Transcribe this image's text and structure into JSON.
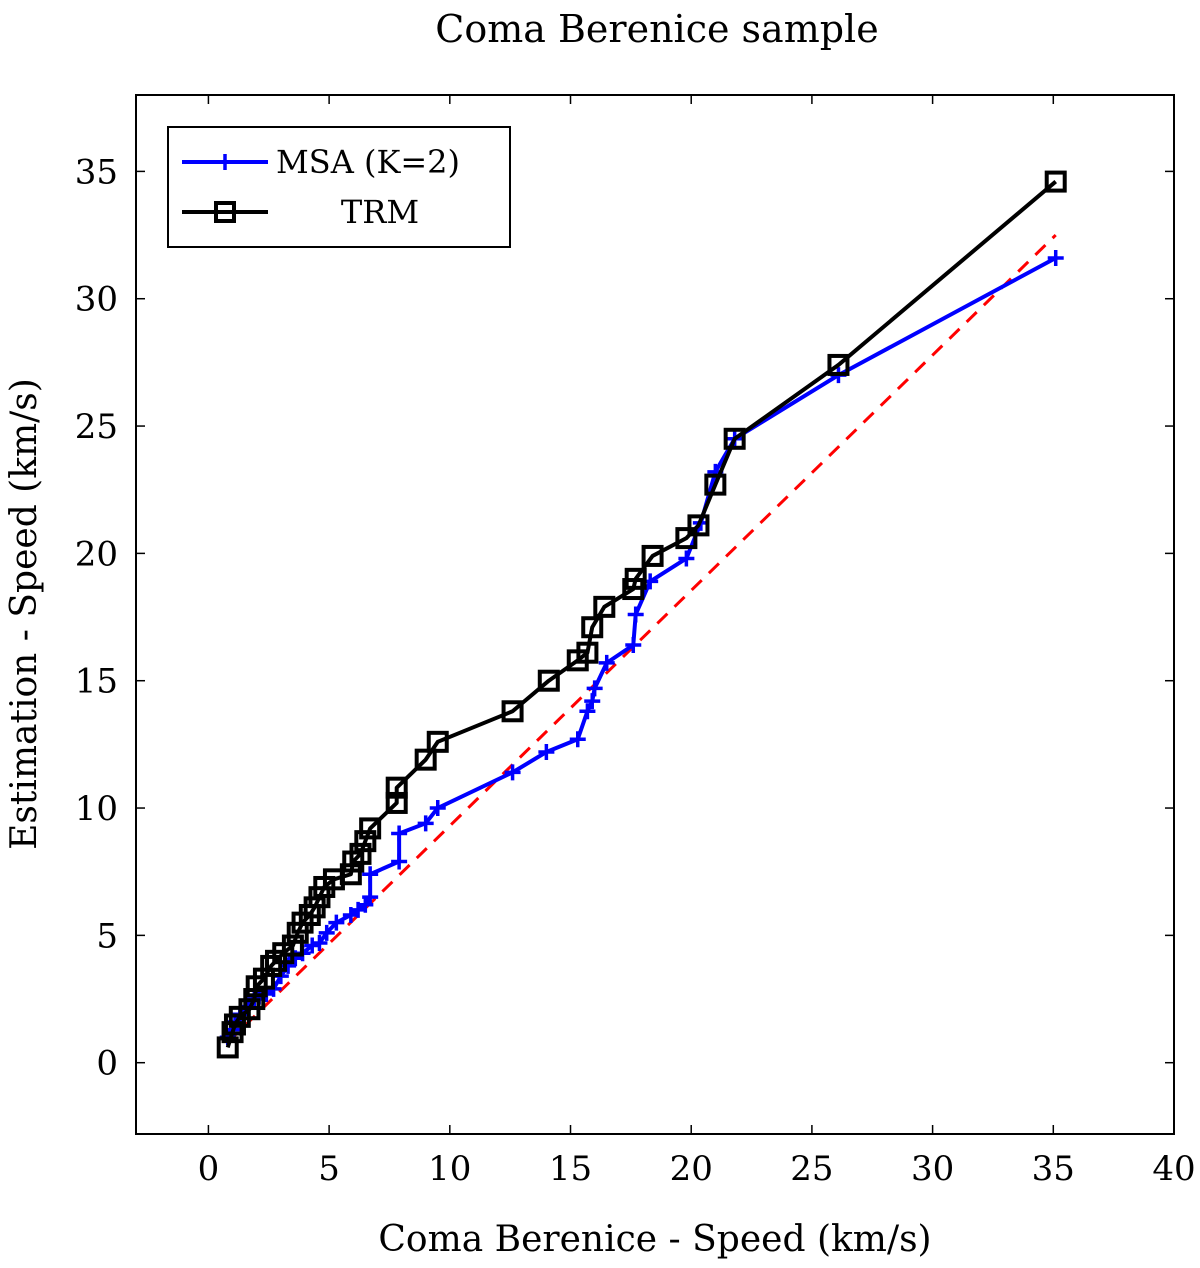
{
  "colors": {
    "msa": "#0000ff",
    "trm": "#000000",
    "reference": "#ff0000",
    "axes": "#000000"
  },
  "chart_data": {
    "type": "line",
    "title": "Coma Berenice sample",
    "xlabel": "Coma Berenice - Speed (km/s)",
    "ylabel": "Estimation - Speed (km/s)",
    "xlim": [
      -3,
      40
    ],
    "ylim": [
      -2.8,
      38
    ],
    "xticks": [
      0,
      5,
      10,
      15,
      20,
      25,
      30,
      35,
      40
    ],
    "yticks": [
      0,
      5,
      10,
      15,
      20,
      25,
      30,
      35
    ],
    "legend_position": "top-left",
    "series": [
      {
        "name": "MSA (K=2)",
        "color": "#0000ff",
        "marker": "plus",
        "points": [
          [
            0.8,
            1.0
          ],
          [
            1.0,
            1.3
          ],
          [
            1.1,
            1.6
          ],
          [
            1.3,
            1.9
          ],
          [
            1.6,
            2.2
          ],
          [
            1.9,
            2.5
          ],
          [
            2.1,
            2.6
          ],
          [
            2.4,
            2.7
          ],
          [
            2.7,
            2.9
          ],
          [
            3.0,
            3.4
          ],
          [
            3.3,
            3.8
          ],
          [
            3.6,
            4.1
          ],
          [
            3.9,
            4.3
          ],
          [
            4.3,
            4.6
          ],
          [
            4.6,
            4.7
          ],
          [
            4.9,
            5.1
          ],
          [
            5.3,
            5.5
          ],
          [
            5.9,
            5.8
          ],
          [
            6.2,
            6.0
          ],
          [
            6.5,
            6.2
          ],
          [
            6.7,
            6.5
          ],
          [
            6.7,
            7.4
          ],
          [
            7.9,
            7.9
          ],
          [
            7.9,
            9.0
          ],
          [
            9.0,
            9.4
          ],
          [
            9.5,
            10.0
          ],
          [
            12.6,
            11.4
          ],
          [
            14.0,
            12.2
          ],
          [
            15.3,
            12.7
          ],
          [
            15.7,
            13.8
          ],
          [
            15.9,
            14.2
          ],
          [
            16.0,
            14.7
          ],
          [
            16.5,
            15.7
          ],
          [
            17.6,
            16.4
          ],
          [
            17.7,
            17.6
          ],
          [
            18.3,
            18.9
          ],
          [
            19.8,
            19.8
          ],
          [
            20.4,
            21.2
          ],
          [
            21.0,
            23.2
          ],
          [
            21.8,
            24.5
          ],
          [
            26.1,
            27.0
          ],
          [
            35.1,
            31.6
          ]
        ]
      },
      {
        "name": "TRM",
        "color": "#000000",
        "marker": "square",
        "points": [
          [
            0.8,
            0.6
          ],
          [
            1.0,
            1.2
          ],
          [
            1.1,
            1.5
          ],
          [
            1.3,
            1.8
          ],
          [
            1.7,
            2.1
          ],
          [
            1.9,
            2.5
          ],
          [
            2.0,
            3.0
          ],
          [
            2.3,
            3.3
          ],
          [
            2.6,
            3.8
          ],
          [
            2.8,
            4.0
          ],
          [
            3.1,
            4.3
          ],
          [
            3.5,
            4.6
          ],
          [
            3.7,
            5.1
          ],
          [
            3.9,
            5.5
          ],
          [
            4.2,
            5.8
          ],
          [
            4.4,
            6.1
          ],
          [
            4.6,
            6.5
          ],
          [
            4.8,
            6.9
          ],
          [
            5.2,
            7.2
          ],
          [
            5.9,
            7.4
          ],
          [
            6.0,
            7.9
          ],
          [
            6.3,
            8.2
          ],
          [
            6.5,
            8.7
          ],
          [
            6.7,
            9.2
          ],
          [
            7.8,
            10.2
          ],
          [
            7.8,
            10.8
          ],
          [
            9.0,
            11.9
          ],
          [
            9.5,
            12.6
          ],
          [
            12.6,
            13.8
          ],
          [
            14.1,
            15.0
          ],
          [
            15.3,
            15.8
          ],
          [
            15.7,
            16.1
          ],
          [
            15.9,
            17.1
          ],
          [
            16.4,
            17.9
          ],
          [
            17.6,
            18.6
          ],
          [
            17.7,
            19.0
          ],
          [
            18.4,
            19.9
          ],
          [
            19.8,
            20.6
          ],
          [
            20.3,
            21.1
          ],
          [
            21.0,
            22.7
          ],
          [
            21.8,
            24.5
          ],
          [
            26.1,
            27.4
          ],
          [
            35.1,
            34.6
          ]
        ]
      },
      {
        "name": "reference",
        "color": "#ff0000",
        "style": "dashed",
        "points": [
          [
            0.8,
            0.8
          ],
          [
            35.1,
            32.5
          ]
        ]
      }
    ]
  }
}
